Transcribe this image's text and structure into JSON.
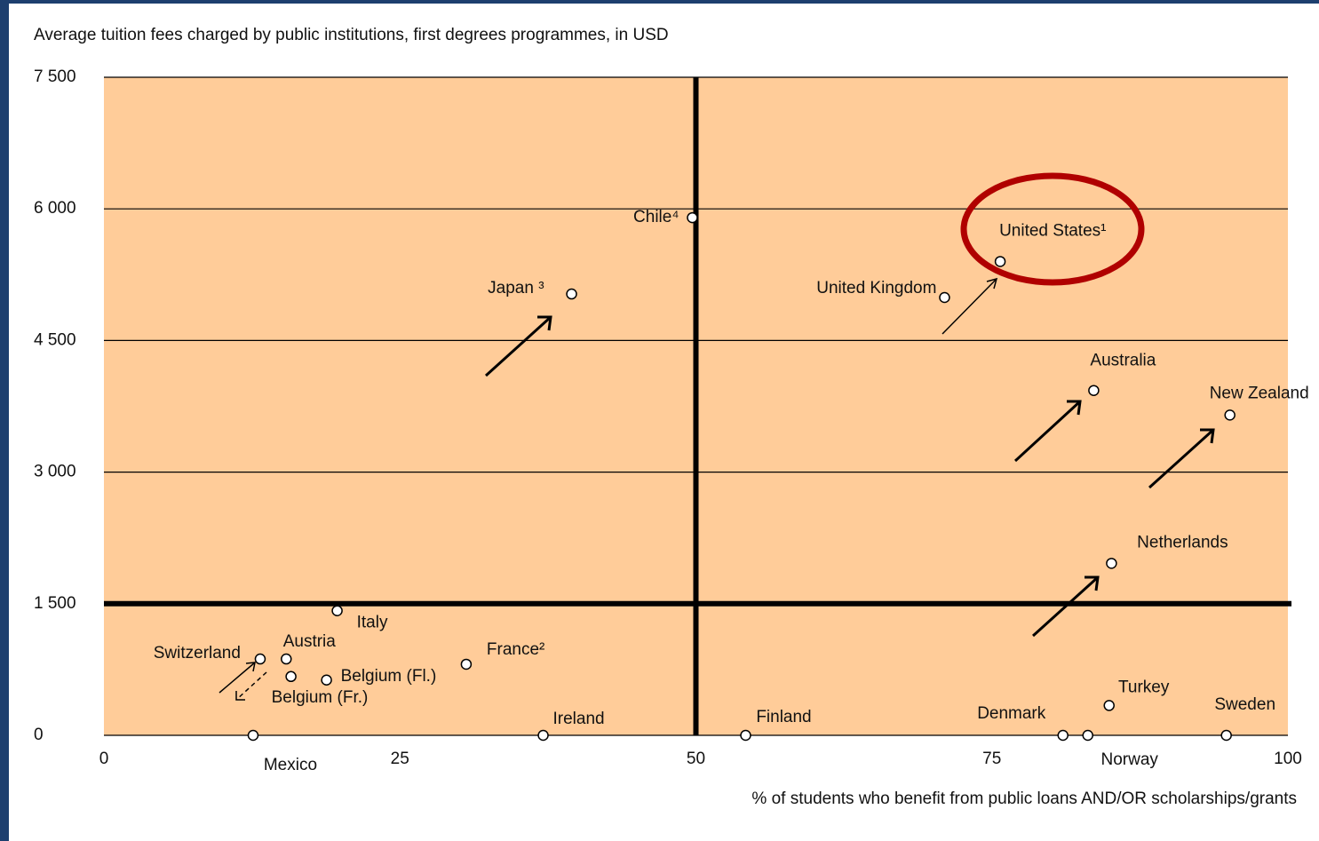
{
  "chart_data": {
    "type": "scatter",
    "title": "Average tuition fees charged by public institutions, first degrees programmes, in USD",
    "x_label": "% of students who benefit from public loans AND/OR scholarships/grants",
    "series": [
      {
        "color": "#ffffff",
        "labels": [
          "Chile⁴",
          "Japan ³",
          "United States¹",
          "United Kingdom",
          "Australia",
          "New Zealand",
          "Netherlands",
          "Italy",
          "Switzerland",
          "Austria",
          "Belgium (Fl.)",
          "Belgium (Fr.)",
          "France²",
          "Mexico",
          "Ireland",
          "Finland",
          "Denmark",
          "Norway",
          "Turkey",
          "Sweden"
        ],
        "x": [
          49.7,
          39.5,
          75.7,
          71.0,
          83.6,
          95.1,
          85.1,
          19.7,
          13.2,
          15.4,
          18.8,
          15.8,
          30.6,
          12.6,
          37.1,
          54.2,
          81.0,
          83.1,
          84.9,
          94.8
        ],
        "values": [
          5900,
          5030,
          5400,
          4990,
          3930,
          3650,
          1960,
          1420,
          870,
          870,
          630,
          670,
          810,
          0,
          0,
          0,
          0,
          0,
          340,
          0
        ]
      }
    ],
    "xlim": [
      0,
      100
    ],
    "xticks": [
      0,
      25,
      50,
      75,
      100
    ],
    "ylim": [
      0,
      7500
    ],
    "yticks": [
      0,
      {
        "value": 1500,
        "label": "1 500"
      },
      {
        "value": 3000,
        "label": "3 000"
      },
      {
        "value": 4500,
        "label": "4 500"
      },
      {
        "value": 6000,
        "label": "6 000"
      },
      {
        "value": 7500,
        "label": "7 500"
      }
    ],
    "grid": true,
    "plot_color": "#ffcc99",
    "quadrant_lines": {
      "x": 50,
      "y": 1500
    }
  }
}
